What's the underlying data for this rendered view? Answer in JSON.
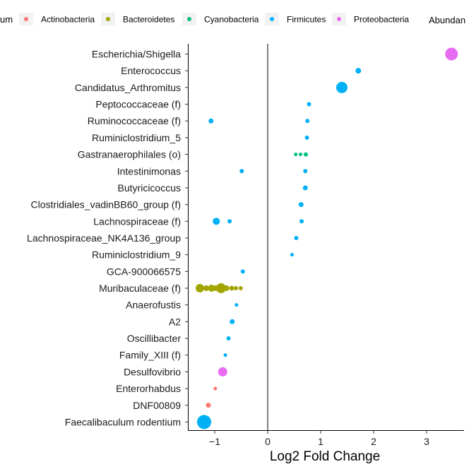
{
  "chart_data": {
    "type": "scatter",
    "xlabel": "Log2 Fold Change",
    "x_ticks": [
      -1,
      0,
      1,
      2,
      3
    ],
    "xlim": [
      -1.5,
      3.7
    ],
    "legend": {
      "title_left_fragment": "um",
      "placement": "top",
      "entries": [
        {
          "name": "Actinobacteria",
          "color": "#F8766D"
        },
        {
          "name": "Bacteroidetes",
          "color": "#A3A500"
        },
        {
          "name": "Cyanobacteria",
          "color": "#00BF7D"
        },
        {
          "name": "Firmicutes",
          "color": "#00B0F6"
        },
        {
          "name": "Proteobacteria",
          "color": "#E76BF3"
        }
      ],
      "size_title_fragment": "Abundan"
    },
    "categories": [
      "Escherichia/Shigella",
      "Enterococcus",
      "Candidatus_Arthromitus",
      "Peptococcaceae (f)",
      "Ruminococcaceae (f)",
      "Ruminiclostridium_5",
      "Gastranaerophilales (o)",
      "Intestinimonas",
      "Butyricicoccus",
      "Clostridiales_vadinBB60_group (f)",
      "Lachnospiraceae (f)",
      "Lachnospiraceae_NK4A136_group",
      "Ruminiclostridium_9",
      "GCA-900066575",
      "Muribaculaceae (f)",
      "Anaerofustis",
      "A2",
      "Oscillibacter",
      "Family_XIII (f)",
      "Desulfovibrio",
      "Enterorhabdus",
      "DNF00809",
      "Faecalibaculum rodentium"
    ],
    "points": [
      {
        "category": "Escherichia/Shigella",
        "x": 3.47,
        "phylum": "Proteobacteria",
        "size": 9
      },
      {
        "category": "Enterococcus",
        "x": 1.71,
        "phylum": "Firmicutes",
        "size": 4
      },
      {
        "category": "Candidatus_Arthromitus",
        "x": 1.4,
        "phylum": "Firmicutes",
        "size": 8
      },
      {
        "category": "Peptococcaceae (f)",
        "x": 0.78,
        "phylum": "Firmicutes",
        "size": 3
      },
      {
        "category": "Ruminococcaceae (f)",
        "x": 0.75,
        "phylum": "Firmicutes",
        "size": 3
      },
      {
        "category": "Ruminococcaceae (f)",
        "x": -1.07,
        "phylum": "Firmicutes",
        "size": 3.5
      },
      {
        "category": "Ruminiclostridium_5",
        "x": 0.74,
        "phylum": "Firmicutes",
        "size": 3
      },
      {
        "category": "Gastranaerophilales (o)",
        "x": 0.53,
        "phylum": "Cyanobacteria",
        "size": 2.5
      },
      {
        "category": "Gastranaerophilales (o)",
        "x": 0.62,
        "phylum": "Cyanobacteria",
        "size": 2.5
      },
      {
        "category": "Gastranaerophilales (o)",
        "x": 0.72,
        "phylum": "Cyanobacteria",
        "size": 3
      },
      {
        "category": "Intestinimonas",
        "x": -0.49,
        "phylum": "Firmicutes",
        "size": 3
      },
      {
        "category": "Intestinimonas",
        "x": 0.71,
        "phylum": "Firmicutes",
        "size": 3
      },
      {
        "category": "Butyricicoccus",
        "x": 0.71,
        "phylum": "Firmicutes",
        "size": 3.5
      },
      {
        "category": "Clostridiales_vadinBB60_group (f)",
        "x": 0.63,
        "phylum": "Firmicutes",
        "size": 3.5
      },
      {
        "category": "Lachnospiraceae (f)",
        "x": -0.97,
        "phylum": "Firmicutes",
        "size": 5
      },
      {
        "category": "Lachnospiraceae (f)",
        "x": -0.72,
        "phylum": "Firmicutes",
        "size": 3
      },
      {
        "category": "Lachnospiraceae (f)",
        "x": 0.64,
        "phylum": "Firmicutes",
        "size": 3
      },
      {
        "category": "Lachnospiraceae_NK4A136_group",
        "x": 0.54,
        "phylum": "Firmicutes",
        "size": 3
      },
      {
        "category": "Ruminiclostridium_9",
        "x": 0.46,
        "phylum": "Firmicutes",
        "size": 2.5
      },
      {
        "category": "GCA-900066575",
        "x": -0.47,
        "phylum": "Firmicutes",
        "size": 3
      },
      {
        "category": "Muribaculaceae (f)",
        "x": -1.28,
        "phylum": "Bacteroidetes",
        "size": 6
      },
      {
        "category": "Muribaculaceae (f)",
        "x": -1.16,
        "phylum": "Bacteroidetes",
        "size": 4
      },
      {
        "category": "Muribaculaceae (f)",
        "x": -1.06,
        "phylum": "Bacteroidetes",
        "size": 5
      },
      {
        "category": "Muribaculaceae (f)",
        "x": -0.98,
        "phylum": "Bacteroidetes",
        "size": 4
      },
      {
        "category": "Muribaculaceae (f)",
        "x": -0.88,
        "phylum": "Bacteroidetes",
        "size": 7
      },
      {
        "category": "Muribaculaceae (f)",
        "x": -0.78,
        "phylum": "Bacteroidetes",
        "size": 4
      },
      {
        "category": "Muribaculaceae (f)",
        "x": -0.68,
        "phylum": "Bacteroidetes",
        "size": 3.5
      },
      {
        "category": "Muribaculaceae (f)",
        "x": -0.6,
        "phylum": "Bacteroidetes",
        "size": 3
      },
      {
        "category": "Muribaculaceae (f)",
        "x": -0.51,
        "phylum": "Bacteroidetes",
        "size": 3
      },
      {
        "category": "Anaerofustis",
        "x": -0.59,
        "phylum": "Firmicutes",
        "size": 2.5
      },
      {
        "category": "A2",
        "x": -0.67,
        "phylum": "Firmicutes",
        "size": 3.5
      },
      {
        "category": "Oscillibacter",
        "x": -0.74,
        "phylum": "Firmicutes",
        "size": 3
      },
      {
        "category": "Family_XIII (f)",
        "x": -0.8,
        "phylum": "Firmicutes",
        "size": 2.5
      },
      {
        "category": "Desulfovibrio",
        "x": -0.85,
        "phylum": "Proteobacteria",
        "size": 6.5
      },
      {
        "category": "Enterorhabdus",
        "x": -0.99,
        "phylum": "Actinobacteria",
        "size": 2.5
      },
      {
        "category": "DNF00809",
        "x": -1.12,
        "phylum": "Actinobacteria",
        "size": 3.5
      },
      {
        "category": "Faecalibaculum rodentium",
        "x": -1.2,
        "phylum": "Firmicutes",
        "size": 10
      }
    ]
  }
}
